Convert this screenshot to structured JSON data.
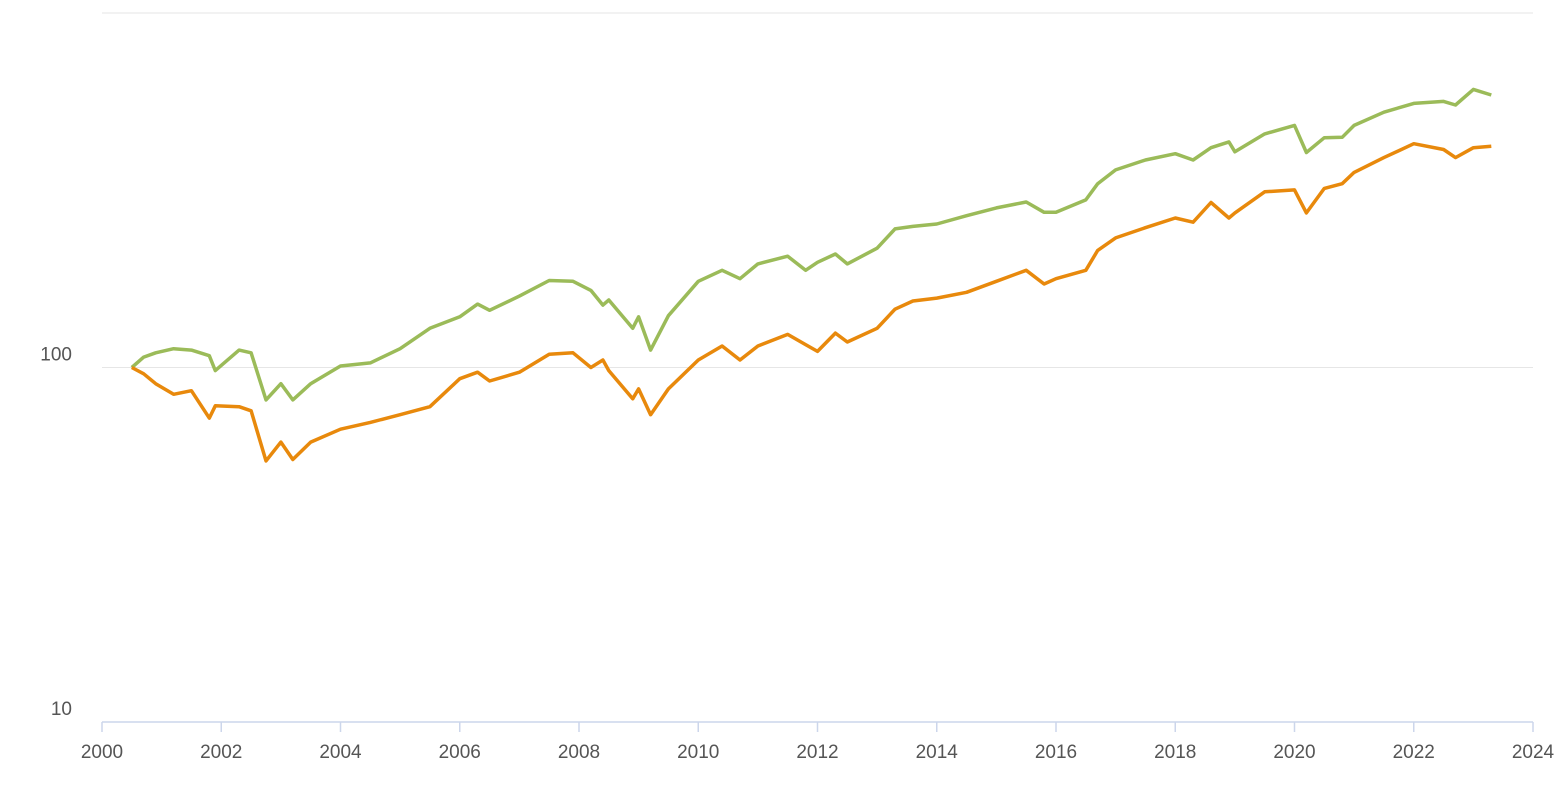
{
  "chart_data": {
    "type": "line",
    "log_y": true,
    "grid": true,
    "xlim": [
      2000,
      2024
    ],
    "xticks": [
      2000,
      2002,
      2004,
      2006,
      2008,
      2010,
      2012,
      2014,
      2016,
      2018,
      2020,
      2022,
      2024
    ],
    "ylim": [
      10,
      1000
    ],
    "yticks": [
      10,
      100
    ],
    "x": [
      2000.5,
      2000.7,
      2000.9,
      2001.2,
      2001.5,
      2001.8,
      2001.9,
      2002.3,
      2002.5,
      2002.75,
      2003.0,
      2003.2,
      2003.5,
      2004.0,
      2004.5,
      2005.0,
      2005.5,
      2006.0,
      2006.3,
      2006.5,
      2007.0,
      2007.5,
      2007.9,
      2008.2,
      2008.4,
      2008.5,
      2008.9,
      2009.0,
      2009.2,
      2009.5,
      2010.0,
      2010.4,
      2010.7,
      2011.0,
      2011.5,
      2011.8,
      2012.0,
      2012.3,
      2012.5,
      2013.0,
      2013.3,
      2013.6,
      2014.0,
      2014.5,
      2015.0,
      2015.5,
      2015.8,
      2016.0,
      2016.5,
      2016.7,
      2017.0,
      2017.5,
      2018.0,
      2018.3,
      2018.6,
      2018.9,
      2019.0,
      2019.5,
      2020.0,
      2020.2,
      2020.5,
      2020.8,
      2021.0,
      2021.5,
      2022.0,
      2022.5,
      2022.7,
      2023.0,
      2023.3
    ],
    "series": [
      {
        "color": "#9bbb59",
        "values": [
          100,
          107,
          110,
          113,
          112,
          108,
          98,
          112,
          110,
          81,
          90,
          81,
          90,
          101,
          103,
          113,
          129,
          139,
          151,
          145,
          159,
          176,
          175,
          165,
          150,
          155,
          129,
          139,
          112,
          140,
          175,
          188,
          178,
          196,
          206,
          188,
          198,
          209,
          196,
          217,
          246,
          250,
          254,
          268,
          282,
          293,
          274,
          274,
          297,
          330,
          361,
          385,
          401,
          385,
          417,
          433,
          406,
          456,
          482,
          404,
          445,
          446,
          482,
          525,
          556,
          563,
          550,
          609,
          587
        ]
      },
      {
        "color": "#e8890c",
        "values": [
          100,
          96,
          90,
          84,
          86,
          72,
          78,
          77.5,
          75.5,
          54.5,
          61.6,
          55,
          61.6,
          67,
          70,
          73.6,
          77.5,
          93,
          97,
          91.6,
          97,
          109,
          110,
          100,
          105,
          98,
          81.6,
          87,
          73.6,
          87,
          105,
          115,
          105,
          115,
          124,
          116,
          111,
          125,
          118,
          129,
          146,
          154,
          157,
          163,
          175,
          188,
          172,
          178,
          188,
          214,
          232,
          248,
          264,
          257,
          292,
          264,
          273,
          313,
          317,
          273,
          320,
          330,
          355,
          391,
          428,
          412,
          391,
          417,
          421
        ]
      }
    ]
  }
}
